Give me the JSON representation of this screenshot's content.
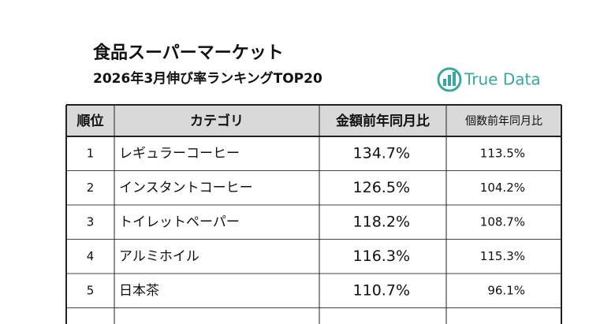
{
  "header": {
    "title": "食品スーパーマーケット",
    "subtitle": "2026年3月伸び率ランキングTOP20",
    "logo": "True Data"
  },
  "table": {
    "columns": [
      "順位",
      "カテゴリ",
      "金額前年同月比",
      "個数前年同月比"
    ],
    "rows": [
      [
        "1",
        "レギュラーコーヒー",
        "134.7%",
        "113.5%"
      ],
      [
        "2",
        "インスタントコーヒー",
        "126.5%",
        "104.2%"
      ],
      [
        "3",
        "トイレットペーパー",
        "118.2%",
        "108.7%"
      ],
      [
        "4",
        "アルミホイル",
        "116.3%",
        "115.3%"
      ],
      [
        "5",
        "日本茶",
        "110.7%",
        "96.1%"
      ]
    ]
  }
}
